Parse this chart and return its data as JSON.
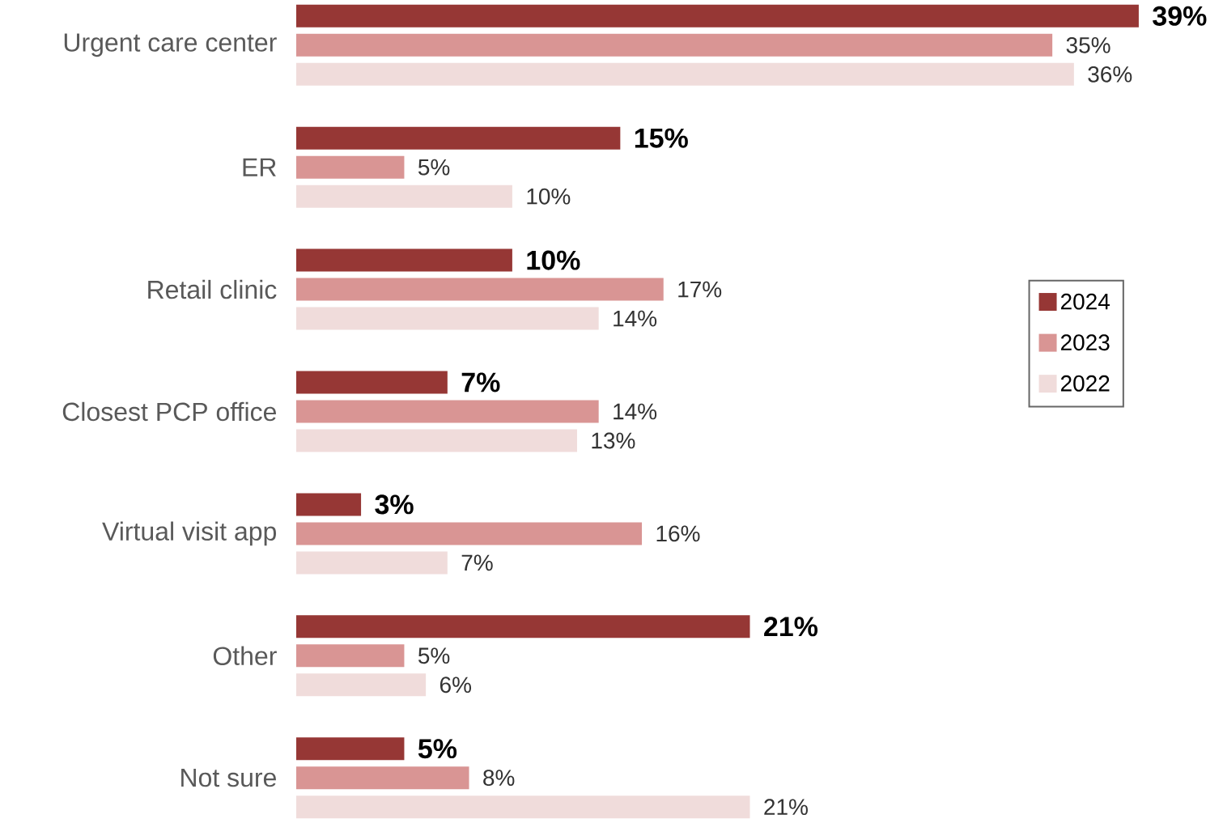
{
  "chart_data": {
    "type": "bar",
    "orientation": "horizontal",
    "legend": "right",
    "categories": [
      "Urgent care center",
      "ER",
      "Retail clinic",
      "Closest PCP office",
      "Virtual visit app",
      "Other",
      "Not sure"
    ],
    "series": [
      {
        "name": "2024",
        "color": "#963735",
        "values": [
          39,
          15,
          10,
          7,
          3,
          21,
          5
        ],
        "value_labels": [
          "39%",
          "15%",
          "10%",
          "7%",
          "3%",
          "21%",
          "5%"
        ]
      },
      {
        "name": "2023",
        "color": "#d99594",
        "values": [
          35,
          5,
          17,
          14,
          16,
          5,
          8
        ],
        "value_labels": [
          "35%",
          "5%",
          "17%",
          "14%",
          "16%",
          "5%",
          "8%"
        ]
      },
      {
        "name": "2022",
        "color": "#f0dcdb",
        "values": [
          36,
          10,
          14,
          13,
          7,
          6,
          21
        ],
        "value_labels": [
          "36%",
          "10%",
          "14%",
          "13%",
          "7%",
          "6%",
          "21%"
        ]
      }
    ]
  }
}
